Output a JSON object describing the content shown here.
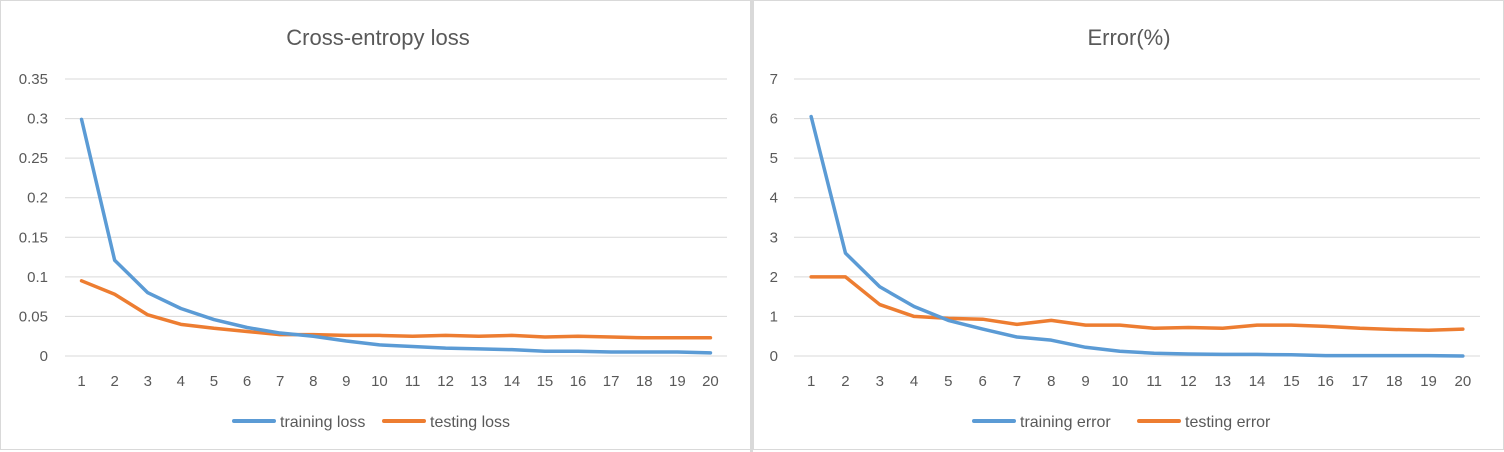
{
  "chart_data": [
    {
      "type": "line",
      "title": "Cross-entropy loss",
      "xlabel": "",
      "ylabel": "",
      "categories": [
        1,
        2,
        3,
        4,
        5,
        6,
        7,
        8,
        9,
        10,
        11,
        12,
        13,
        14,
        15,
        16,
        17,
        18,
        19,
        20
      ],
      "ylim": [
        0,
        0.35
      ],
      "yticks": [
        0,
        0.05,
        0.1,
        0.15,
        0.2,
        0.25,
        0.3,
        0.35
      ],
      "ytick_labels": [
        "0",
        "0.05",
        "0.1",
        "0.15",
        "0.2",
        "0.25",
        "0.3",
        "0.35"
      ],
      "grid": true,
      "legend": "bottom",
      "series": [
        {
          "name": "training loss",
          "color": "#5b9bd5",
          "values": [
            0.299,
            0.121,
            0.08,
            0.06,
            0.046,
            0.036,
            0.029,
            0.025,
            0.019,
            0.014,
            0.012,
            0.01,
            0.009,
            0.008,
            0.006,
            0.006,
            0.005,
            0.005,
            0.005,
            0.004
          ]
        },
        {
          "name": "testing loss",
          "color": "#ed7d31",
          "values": [
            0.095,
            0.078,
            0.052,
            0.04,
            0.035,
            0.031,
            0.027,
            0.027,
            0.026,
            0.026,
            0.025,
            0.026,
            0.025,
            0.026,
            0.024,
            0.025,
            0.024,
            0.023,
            0.023,
            0.023
          ]
        }
      ]
    },
    {
      "type": "line",
      "title": "Error(%)",
      "xlabel": "",
      "ylabel": "",
      "categories": [
        1,
        2,
        3,
        4,
        5,
        6,
        7,
        8,
        9,
        10,
        11,
        12,
        13,
        14,
        15,
        16,
        17,
        18,
        19,
        20
      ],
      "ylim": [
        0,
        7
      ],
      "yticks": [
        0,
        1,
        2,
        3,
        4,
        5,
        6,
        7
      ],
      "ytick_labels": [
        "0",
        "1",
        "2",
        "3",
        "4",
        "5",
        "6",
        "7"
      ],
      "grid": true,
      "legend": "bottom",
      "series": [
        {
          "name": "training error",
          "color": "#5b9bd5",
          "values": [
            6.05,
            2.6,
            1.75,
            1.25,
            0.9,
            0.68,
            0.48,
            0.4,
            0.22,
            0.12,
            0.07,
            0.05,
            0.04,
            0.04,
            0.03,
            0.01,
            0.01,
            0.01,
            0.01,
            0.0
          ]
        },
        {
          "name": "testing error",
          "color": "#ed7d31",
          "values": [
            2.0,
            2.0,
            1.3,
            1.0,
            0.95,
            0.93,
            0.8,
            0.9,
            0.78,
            0.78,
            0.7,
            0.72,
            0.7,
            0.78,
            0.78,
            0.75,
            0.7,
            0.67,
            0.65,
            0.68
          ]
        }
      ]
    }
  ]
}
